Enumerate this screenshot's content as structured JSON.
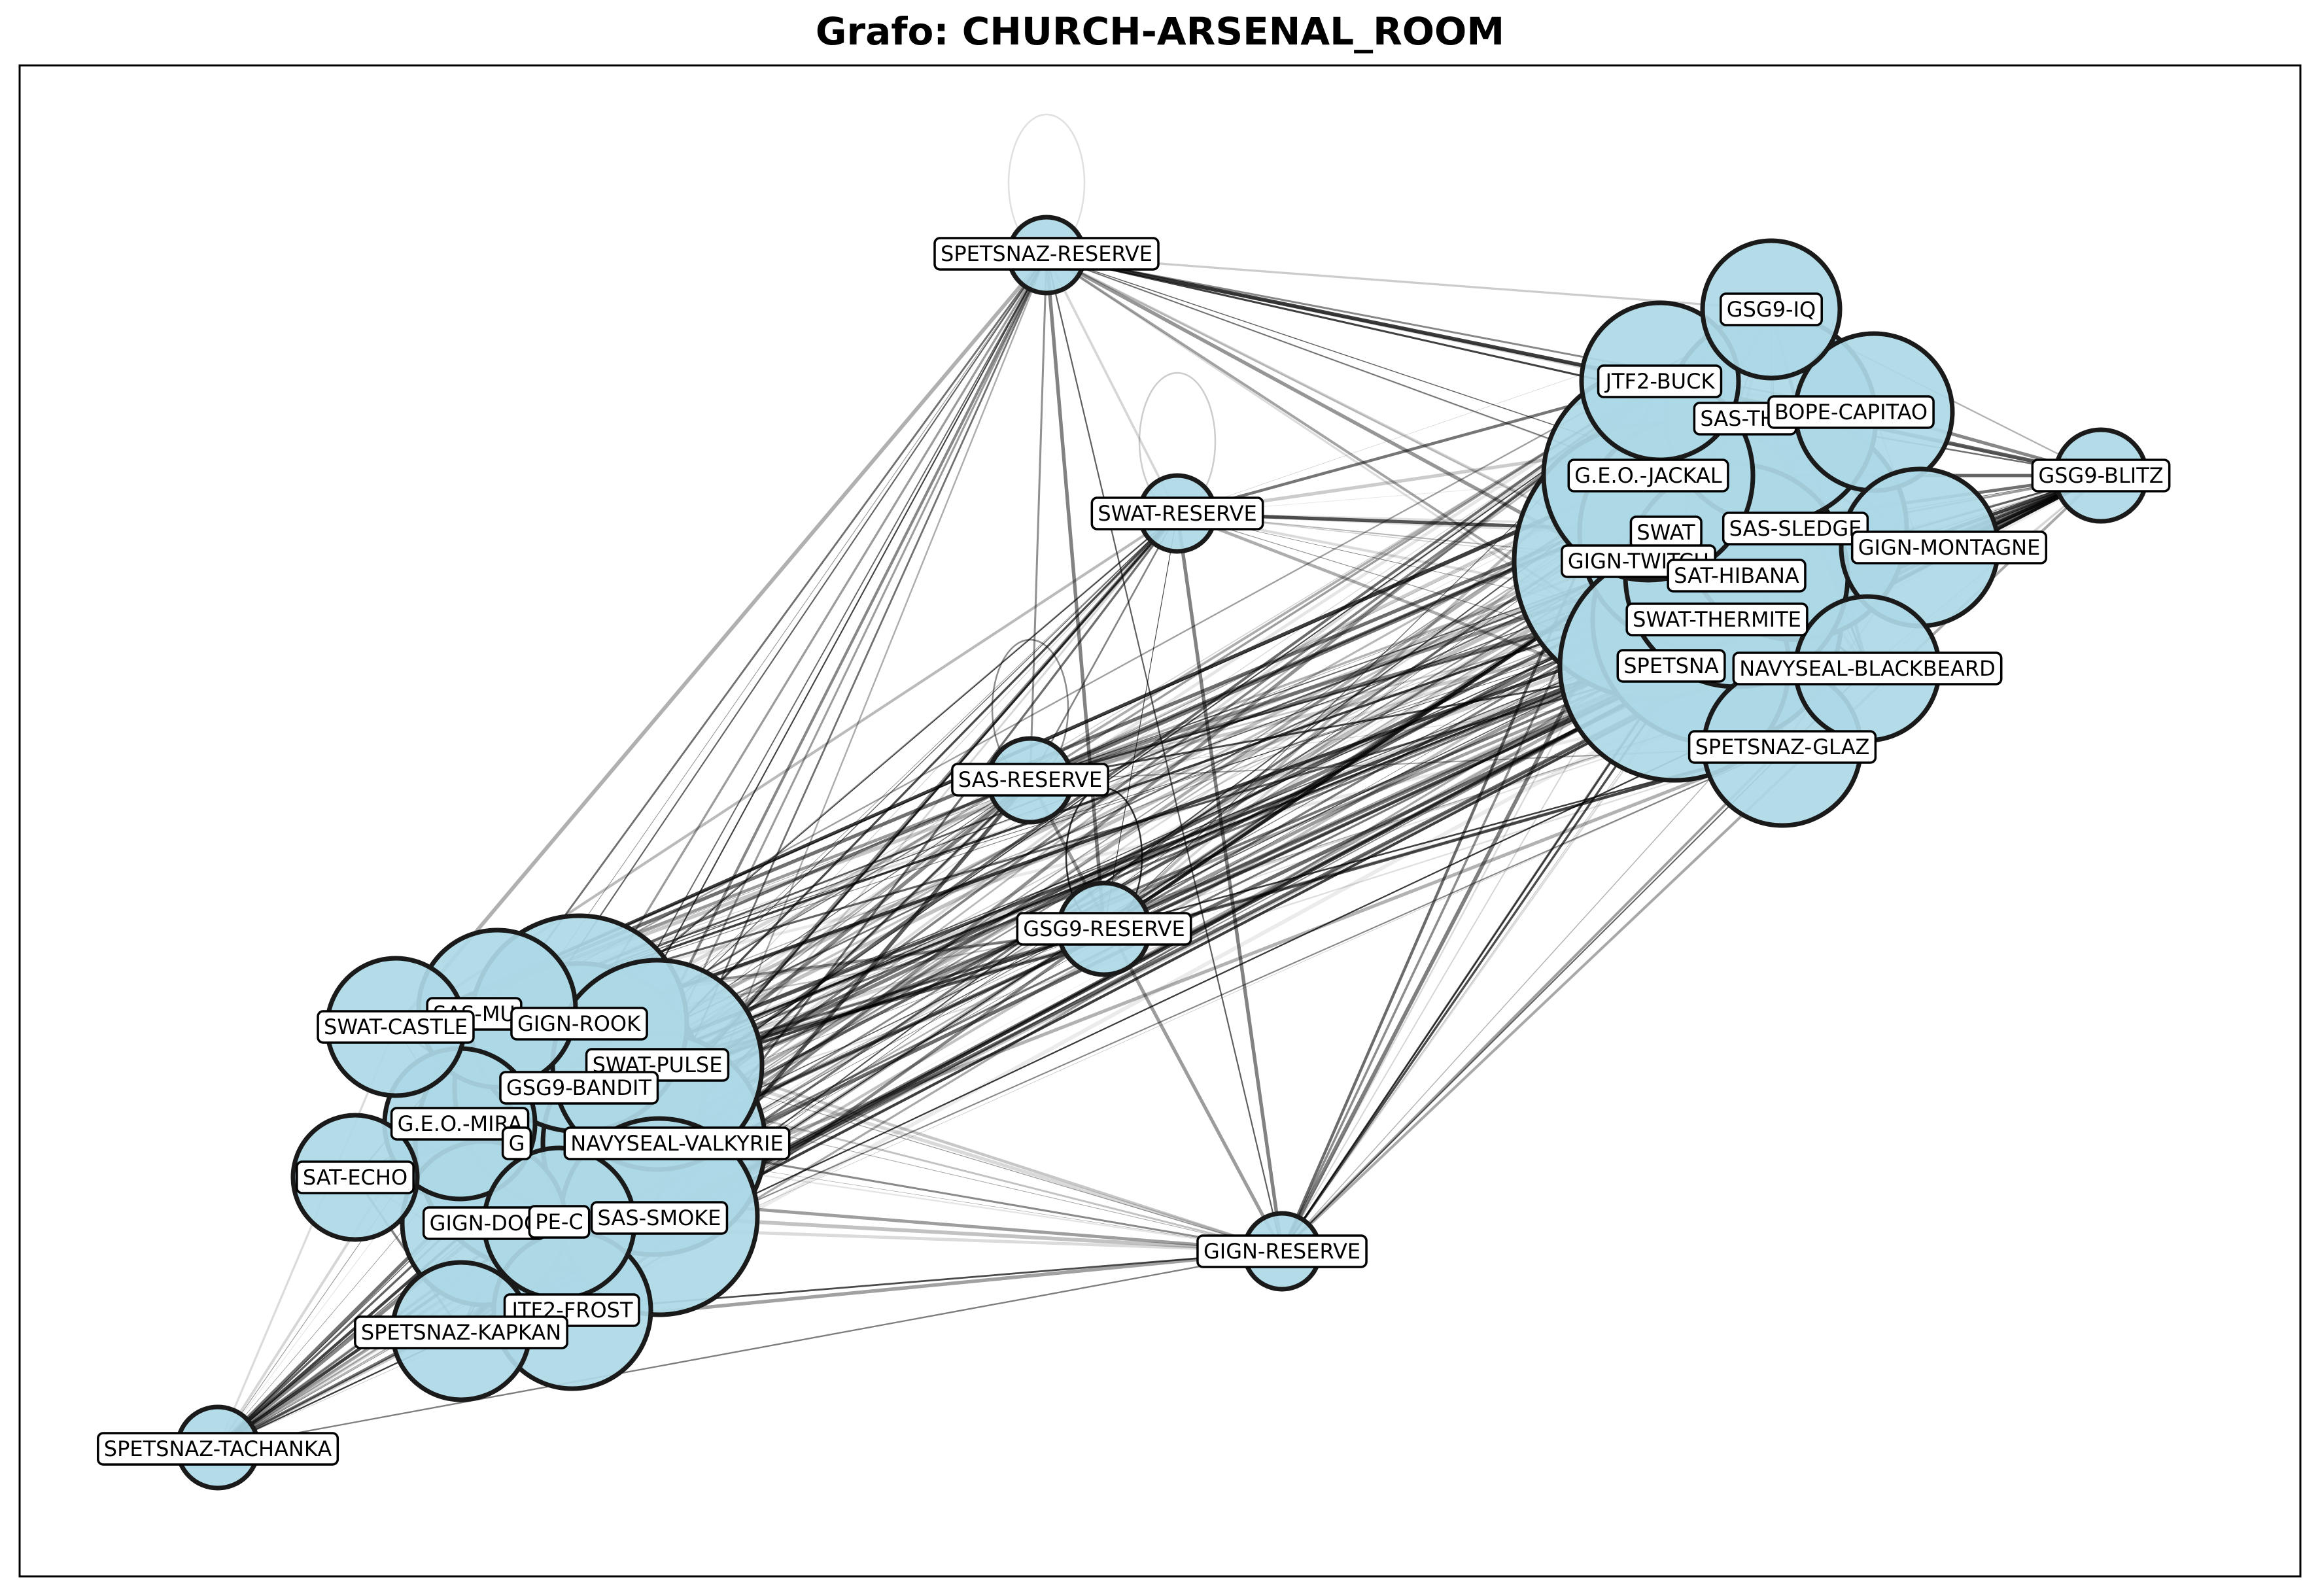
{
  "title": "Grafo: CHURCH-ARSENAL_ROOM",
  "colors": {
    "node_fill": "#add8e6",
    "node_stroke": "#1a1a1a",
    "edge": "#000000",
    "label_bg": "#ffffff"
  },
  "nodes": [
    {
      "id": "SPETSNAZ-RESERVE",
      "label": "SPETSNAZ-RESERVE",
      "size": "small"
    },
    {
      "id": "SWAT-RESERVE",
      "label": "SWAT-RESERVE",
      "size": "small"
    },
    {
      "id": "SAS-RESERVE",
      "label": "SAS-RESERVE",
      "size": "small"
    },
    {
      "id": "GSG9-RESERVE",
      "label": "GSG9-RESERVE",
      "size": "small"
    },
    {
      "id": "GIGN-RESERVE",
      "label": "GIGN-RESERVE",
      "size": "small"
    },
    {
      "id": "SPETSNAZ-TACHANKA",
      "label": "SPETSNAZ-TACHANKA",
      "size": "small"
    },
    {
      "id": "GSG9-BLITZ",
      "label": "GSG9-BLITZ",
      "size": "small"
    },
    {
      "id": "GSG9-IQ",
      "label": "GSG9-IQ",
      "size": "medium"
    },
    {
      "id": "JTF2-BUCK",
      "label": "JTF2-BUCK",
      "size": "medium"
    },
    {
      "id": "SAS-THATCHER",
      "label": "SAS-THA",
      "size": "large"
    },
    {
      "id": "BOPE-CAPITAO",
      "label": "BOPE-CAPITAO",
      "size": "medium"
    },
    {
      "id": "G.E.O.-JACKAL",
      "label": "G.E.O.-JACKAL",
      "size": "large"
    },
    {
      "id": "SWAT-ASH",
      "label": "SWAT",
      "size": "large"
    },
    {
      "id": "SAS-SLEDGE",
      "label": "SAS-SLEDGE",
      "size": "large"
    },
    {
      "id": "GIGN-MONTAGNE",
      "label": "GIGN-MONTAGNE",
      "size": "medium"
    },
    {
      "id": "GIGN-TWITCH",
      "label": "GIGN-TWITCH",
      "size": "large"
    },
    {
      "id": "SAT-HIBANA",
      "label": "SAT-HIBANA",
      "size": "large"
    },
    {
      "id": "SWAT-THERMITE",
      "label": "SWAT-THERMITE",
      "size": "large"
    },
    {
      "id": "SPETSNAZ-FUZE",
      "label": "SPETSNA",
      "size": "large"
    },
    {
      "id": "NAVYSEAL-BLACKBEARD",
      "label": "NAVYSEAL-BLACKBEARD",
      "size": "medium"
    },
    {
      "id": "SPETSNAZ-GLAZ",
      "label": "SPETSNAZ-GLAZ",
      "size": "medium"
    },
    {
      "id": "SAS-MUTE",
      "label": "SAS-MU",
      "size": "medium"
    },
    {
      "id": "SWAT-CASTLE",
      "label": "SWAT-CASTLE",
      "size": "medium"
    },
    {
      "id": "GIGN-ROOK",
      "label": "GIGN-ROOK",
      "size": "large"
    },
    {
      "id": "SWAT-PULSE",
      "label": "SWAT-PULSE",
      "size": "large"
    },
    {
      "id": "GSG9-BANDIT",
      "label": "GSG9-BANDIT",
      "size": "large"
    },
    {
      "id": "G.E.O.-MIRA",
      "label": "G.E.O.-MIRA",
      "size": "medium"
    },
    {
      "id": "GSG9-JAGER",
      "label": "G",
      "size": "large"
    },
    {
      "id": "NAVYSEAL-VALKYRIE",
      "label": "NAVYSEAL-VALKYRIE",
      "size": "large"
    },
    {
      "id": "SAT-ECHO",
      "label": "SAT-ECHO",
      "size": "medium"
    },
    {
      "id": "GIGN-DOC",
      "label": "GIGN-DOC",
      "size": "medium"
    },
    {
      "id": "BOPE-CAVEIRA",
      "label": "PE-C",
      "size": "medium"
    },
    {
      "id": "SAS-SMOKE",
      "label": "SAS-SMOKE",
      "size": "large"
    },
    {
      "id": "JTF2-FROST",
      "label": "JTF2-FROST",
      "size": "medium"
    },
    {
      "id": "SPETSNAZ-KAPKAN",
      "label": "SPETSNAZ-KAPKAN",
      "size": "medium"
    }
  ]
}
